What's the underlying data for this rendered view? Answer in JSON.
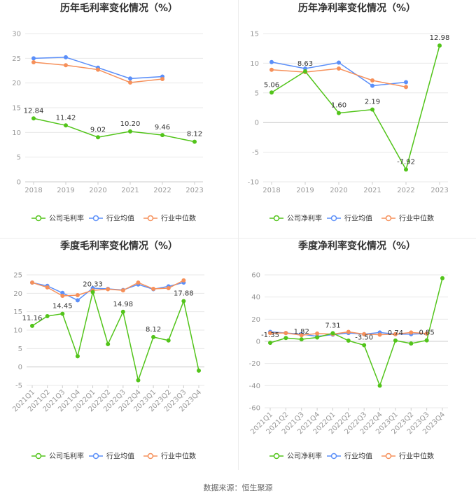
{
  "source_text": "数据来源：恒生聚源",
  "chart_data": [
    {
      "type": "line",
      "title": "历年毛利率变化情况（%）",
      "categories": [
        "2018",
        "2019",
        "2020",
        "2021",
        "2022",
        "2023"
      ],
      "ylim": [
        0,
        30
      ],
      "yticks": [
        0,
        5,
        10,
        15,
        20,
        25,
        30
      ],
      "series": [
        {
          "name": "公司毛利率",
          "color": "#52c41a",
          "values": [
            12.84,
            11.42,
            9.02,
            10.2,
            9.46,
            8.12
          ],
          "labels": [
            "12.84",
            "11.42",
            "9.02",
            "10.20",
            "9.46",
            "8.12"
          ]
        },
        {
          "name": "行业均值",
          "color": "#5b8ff9",
          "values": [
            25.0,
            25.2,
            23.1,
            20.9,
            21.3,
            null
          ]
        },
        {
          "name": "行业中位数",
          "color": "#f6905a",
          "values": [
            24.2,
            23.6,
            22.7,
            20.1,
            20.8,
            null
          ]
        }
      ]
    },
    {
      "type": "line",
      "title": "历年净利率变化情况（%）",
      "categories": [
        "2018",
        "2019",
        "2020",
        "2021",
        "2022",
        "2023"
      ],
      "ylim": [
        -10,
        15
      ],
      "yticks": [
        -10,
        -5,
        0,
        5,
        10,
        15
      ],
      "series": [
        {
          "name": "公司净利率",
          "color": "#52c41a",
          "values": [
            5.06,
            8.63,
            1.6,
            2.19,
            -7.92,
            12.98
          ],
          "labels": [
            "5.06",
            "8.63",
            "1.60",
            "2.19",
            "-7.92",
            "12.98"
          ]
        },
        {
          "name": "行业均值",
          "color": "#5b8ff9",
          "values": [
            10.2,
            9.1,
            10.1,
            6.2,
            6.8,
            null
          ]
        },
        {
          "name": "行业中位数",
          "color": "#f6905a",
          "values": [
            8.9,
            8.5,
            9.1,
            7.1,
            6.0,
            null
          ]
        }
      ]
    },
    {
      "type": "line",
      "title": "季度毛利率变化情况（%）",
      "categories": [
        "2021Q1",
        "2021Q2",
        "2021Q3",
        "2021Q4",
        "2022Q1",
        "2022Q2",
        "2022Q3",
        "2022Q4",
        "2023Q1",
        "2023Q2",
        "2023Q3",
        "2023Q4"
      ],
      "ylim": [
        -5,
        25
      ],
      "yticks": [
        -5,
        0,
        5,
        10,
        15,
        20,
        25
      ],
      "series": [
        {
          "name": "公司毛利率",
          "color": "#52c41a",
          "values": [
            11.16,
            13.8,
            14.45,
            2.9,
            20.33,
            6.2,
            14.98,
            -3.6,
            8.12,
            7.2,
            17.88,
            -1.0
          ],
          "labels": [
            "11.16",
            "",
            "14.45",
            "",
            "20.33",
            "",
            "14.98",
            "",
            "8.12",
            "",
            "17.88",
            ""
          ]
        },
        {
          "name": "行业均值",
          "color": "#5b8ff9",
          "values": [
            22.9,
            22.0,
            20.1,
            18.1,
            21.4,
            21.2,
            20.9,
            22.4,
            21.1,
            21.9,
            22.9,
            null
          ]
        },
        {
          "name": "行业中位数",
          "color": "#f6905a",
          "values": [
            22.9,
            21.6,
            19.3,
            19.5,
            20.8,
            21.1,
            20.8,
            22.9,
            21.2,
            21.4,
            23.5,
            null
          ]
        }
      ]
    },
    {
      "type": "line",
      "title": "季度净利率变化情况（%）",
      "categories": [
        "2021Q1",
        "2021Q2",
        "2021Q3",
        "2021Q4",
        "2022Q1",
        "2022Q2",
        "2022Q3",
        "2022Q4",
        "2023Q1",
        "2023Q2",
        "2023Q3",
        "2023Q4"
      ],
      "ylim": [
        -60,
        60
      ],
      "yticks": [
        -60,
        -40,
        -20,
        0,
        20,
        40,
        60
      ],
      "series": [
        {
          "name": "公司净利率",
          "color": "#52c41a",
          "values": [
            -1.35,
            3.0,
            1.82,
            3.5,
            7.31,
            0.6,
            -3.5,
            -40.0,
            0.74,
            -2.0,
            0.85,
            57.0
          ],
          "labels": [
            "-1.35",
            "",
            "1.82",
            "",
            "7.31",
            "",
            "-3.50",
            "",
            "0.74",
            "",
            "0.85",
            ""
          ]
        },
        {
          "name": "行业均值",
          "color": "#5b8ff9",
          "values": [
            8.5,
            7.5,
            6.5,
            4.5,
            6.0,
            7.5,
            6.5,
            8.0,
            6.5,
            6.5,
            7.0,
            null
          ]
        },
        {
          "name": "行业中位数",
          "color": "#f6905a",
          "values": [
            7.5,
            7.5,
            5.5,
            7.0,
            6.5,
            8.5,
            6.5,
            6.0,
            6.5,
            8.0,
            7.0,
            null
          ]
        }
      ]
    }
  ]
}
